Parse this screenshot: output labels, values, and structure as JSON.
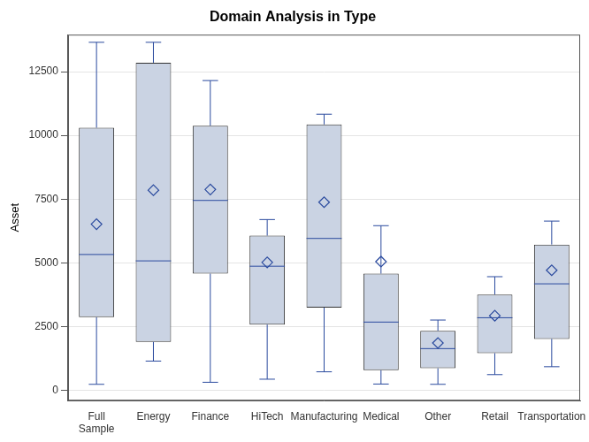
{
  "chart_data": {
    "type": "box",
    "title": "Domain Analysis in Type",
    "y_label": "Asset",
    "categories": [
      "Full Sample",
      "Energy",
      "Finance",
      "HiTech",
      "Manufacturing",
      "Medical",
      "Other",
      "Retail",
      "Transportation"
    ],
    "min": [
      240,
      1150,
      320,
      440,
      730,
      250,
      240,
      620,
      930
    ],
    "q1": [
      2870,
      1900,
      4580,
      2580,
      3250,
      790,
      870,
      1460,
      2020
    ],
    "median": [
      5330,
      5080,
      7450,
      4870,
      5960,
      2680,
      1640,
      2850,
      4180
    ],
    "q3": [
      10300,
      12850,
      10380,
      6070,
      10430,
      4580,
      2340,
      3760,
      5720
    ],
    "max": [
      13650,
      13650,
      12150,
      6700,
      10830,
      6460,
      2760,
      4460,
      6640
    ],
    "mean": [
      6520,
      7850,
      7880,
      5020,
      7380,
      5050,
      1860,
      2930,
      4710
    ],
    "color": "#cad3e3",
    "marker": "diamond",
    "ylim": [
      -400,
      13950
    ],
    "yticks": [
      0,
      2500,
      5000,
      7500,
      10000,
      12500
    ],
    "grid": true
  }
}
